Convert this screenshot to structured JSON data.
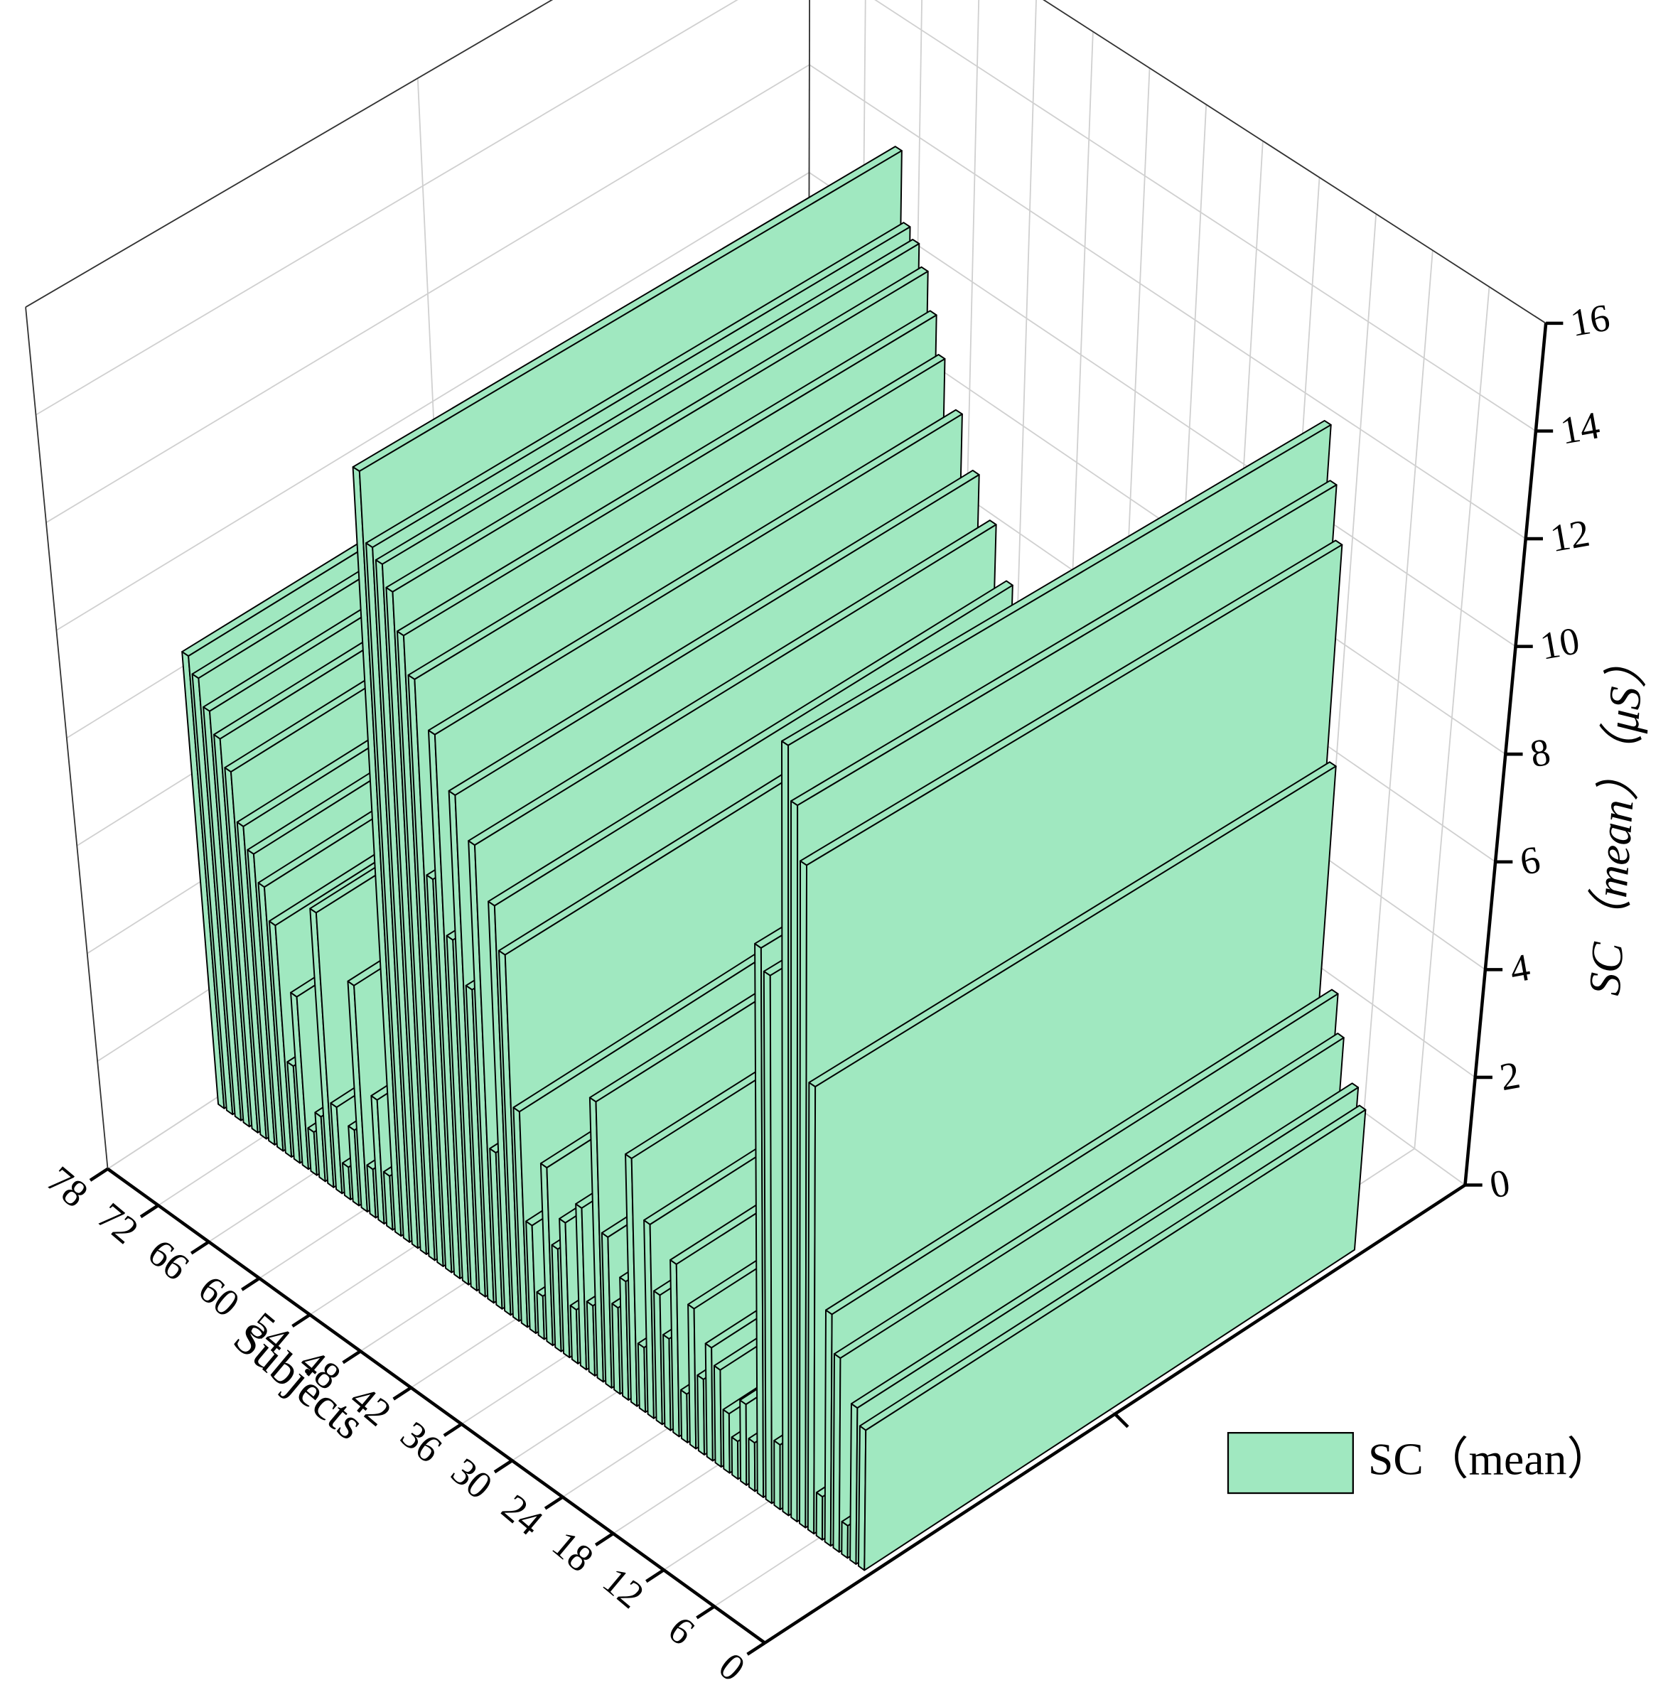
{
  "chart_data": {
    "type": "bar3d",
    "xlabel": "Subjects",
    "ylabel": "SC（mean）（μS）",
    "x": [
      1,
      2,
      3,
      4,
      5,
      6,
      7,
      8,
      9,
      10,
      11,
      12,
      13,
      14,
      15,
      16,
      17,
      18,
      19,
      20,
      21,
      22,
      23,
      24,
      25,
      26,
      27,
      28,
      29,
      30,
      31,
      32,
      33,
      34,
      35,
      36,
      37,
      38,
      39,
      40,
      41,
      42,
      43,
      44,
      45,
      46,
      47,
      48,
      49,
      50,
      51,
      52,
      53,
      54,
      55,
      56,
      57,
      58,
      59,
      60,
      61,
      62,
      63,
      64,
      65,
      66,
      67,
      68,
      69,
      70,
      71,
      72,
      73,
      74,
      75,
      76,
      77
    ],
    "series": [
      {
        "name": "SC（mean）",
        "color": "#a0e8c0",
        "values": [
          2.6,
          2.9,
          0.6,
          3.6,
          4.3,
          0.8,
          8.3,
          12.3,
          13.3,
          14.3,
          1.2,
          9.8,
          10.2,
          0.9,
          1.5,
          0.7,
          1.1,
          1.8,
          2.1,
          1.4,
          2.6,
          0.9,
          3.2,
          1.7,
          2.4,
          3.6,
          1.2,
          4.6,
          2.2,
          1.6,
          2.8,
          5.2,
          1.3,
          3.0,
          1.0,
          2.5,
          1.9,
          3.3,
          0.8,
          2.0,
          4.0,
          6.8,
          7.6,
          2.9,
          8.5,
          5.7,
          9.2,
          6.4,
          10.1,
          7.3,
          10.9,
          11.6,
          12.3,
          12.7,
          12.9,
          14.2,
          1.0,
          2.3,
          0.9,
          4.2,
          1.4,
          0.6,
          1.6,
          5.1,
          1.2,
          0.8,
          3.2,
          1.8,
          4.3,
          4.9,
          5.4,
          5.8,
          6.7,
          7.2,
          7.6,
          8.1,
          8.4
        ]
      }
    ],
    "xlim": [
      0,
      78
    ],
    "xticks": [
      0,
      6,
      12,
      18,
      24,
      30,
      36,
      42,
      48,
      54,
      60,
      66,
      72,
      78
    ],
    "ylim": [
      0,
      16
    ],
    "yticks": [
      0,
      2,
      4,
      6,
      8,
      10,
      12,
      14,
      16
    ],
    "grid": true,
    "legend": "lower-right"
  }
}
